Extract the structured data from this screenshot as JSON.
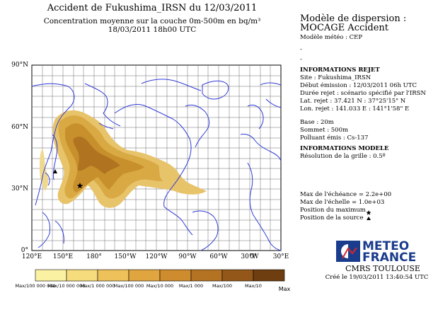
{
  "header": {
    "title": "Accident de Fukushima_IRSN du 12/03/2011",
    "subtitle_line1": "Concentration moyenne sur la couche 0m-500m en bq/m³",
    "subtitle_line2": "18/03/2011 18h00 UTC"
  },
  "map": {
    "lat_labels": [
      "90°N",
      "60°N",
      "30°N",
      "0°"
    ],
    "lon_labels": [
      "120°E",
      "150°E",
      "180°",
      "150°W",
      "120°W",
      "90°W",
      "60°W",
      "30°W",
      "0°",
      "30°E"
    ],
    "land_color": "#2f3bd6",
    "plume_color": "#c9962a"
  },
  "legend": {
    "colors": [
      "#fbf1a3",
      "#f6dc7c",
      "#eec15a",
      "#e1a53f",
      "#cf8c2f",
      "#b47223",
      "#935719",
      "#6e3e10"
    ],
    "labels": [
      "Max/100 000 000",
      "Max/10 000 000",
      "Max/1 000 000",
      "Max/100 000",
      "Max/10 000",
      "Max/1 000",
      "Max/100",
      "Max/10",
      "Max"
    ]
  },
  "right_panel": {
    "model_title1": "Modèle de dispersion :",
    "model_title2": "MOCAGE Accident",
    "meteo_model": "Modèle météo : CEP",
    "dash1": "-",
    "dash2": "-",
    "release_heading": "INFORMATIONS REJET",
    "site": "Site : Fukushima_IRSN",
    "emission_start": "Début émission : 12/03/2011 06h UTC",
    "duration": "Durée rejet : scénario spécifié par l'IRSN",
    "lat": "Lat. rejet : 37.421 N : 37°25'15\" N",
    "lon": "Lon. rejet : 141.033 E : 141°1'58\" E",
    "base": "Base : 20m",
    "top": "Sommet : 500m",
    "pollutant": "Polluant émis : Cs-137",
    "model_heading": "INFORMATIONS MODELE",
    "grid": "Résolution de la grille : 0.5º",
    "max_deadline": "Max de l'échéance = 2.2e+00",
    "max_scale": "Max de l'échelle = 1.0e+03",
    "max_position": "Position du maximum",
    "source_position": "Position de la source"
  },
  "logo": {
    "line1": "METEO",
    "line2": "FRANCE",
    "center": "CMRS TOULOUSE",
    "created": "Créé le 19/03/2011 13:40:54 UTC"
  }
}
